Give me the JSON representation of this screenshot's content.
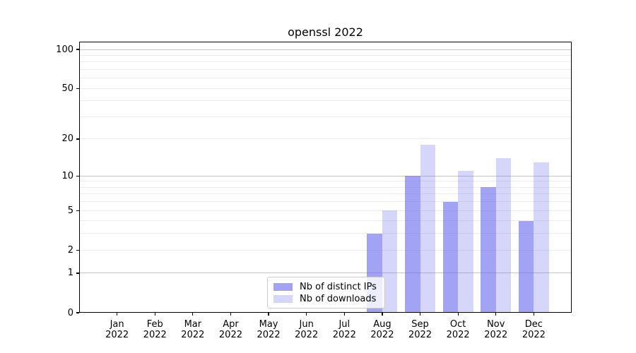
{
  "figure_title": "openssl 2022",
  "chart_data": {
    "type": "bar",
    "title": "openssl 2022",
    "xlabel": "",
    "ylabel": "",
    "year_label": "2022",
    "categories": [
      "Jan",
      "Feb",
      "Mar",
      "Apr",
      "May",
      "Jun",
      "Jul",
      "Aug",
      "Sep",
      "Oct",
      "Nov",
      "Dec"
    ],
    "series": [
      {
        "name": "Nb of distinct IPs",
        "color": "rgba(106,106,240,0.62)",
        "color_hex_over_white": "#a9a9f4",
        "values": [
          0,
          0,
          0,
          0,
          0,
          0,
          0,
          3,
          10,
          6,
          8,
          4
        ]
      },
      {
        "name": "Nb of downloads",
        "color": "rgba(106,106,240,0.28)",
        "color_hex_over_white": "#d9d9f8",
        "values": [
          0,
          0,
          0,
          0,
          0,
          0,
          0,
          5,
          18,
          11,
          14,
          13
        ]
      }
    ],
    "y_axis": {
      "scale": "log1p",
      "tick_labels": [
        "0",
        "1",
        "2",
        "5",
        "10",
        "20",
        "50",
        "100"
      ],
      "tick_values": [
        0,
        1,
        2,
        5,
        10,
        20,
        50,
        100
      ],
      "major_gridline_values": [
        1,
        10,
        100
      ],
      "minor_gridline_values": [
        2,
        3,
        4,
        5,
        6,
        7,
        8,
        9,
        20,
        30,
        40,
        50,
        60,
        70,
        80,
        90
      ],
      "ylim": [
        0,
        113
      ]
    },
    "grid": true,
    "legend_position": "lower center",
    "colors": {
      "major_grid": "#c6c6c6",
      "minor_grid": "#ededed",
      "spine": "#000000",
      "background": "#ffffff"
    }
  }
}
